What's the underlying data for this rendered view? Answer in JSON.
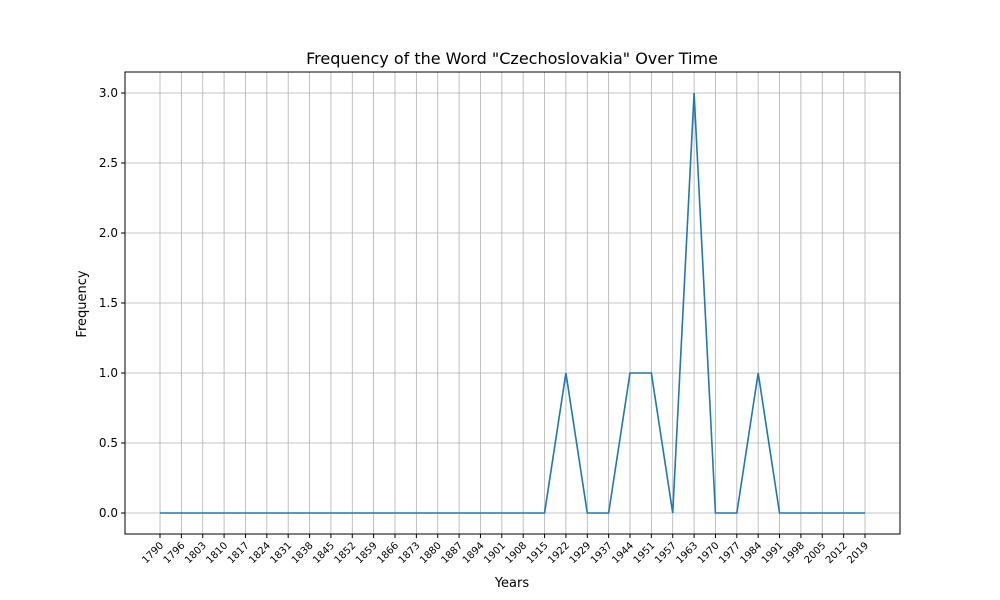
{
  "chart_data": {
    "type": "line",
    "title": "Frequency of the Word \"Czechoslovakia\" Over Time",
    "xlabel": "Years",
    "ylabel": "Frequency",
    "categories": [
      "1790",
      "1796",
      "1803",
      "1810",
      "1817",
      "1824",
      "1831",
      "1838",
      "1845",
      "1852",
      "1859",
      "1866",
      "1873",
      "1880",
      "1887",
      "1894",
      "1901",
      "1908",
      "1915",
      "1922",
      "1929",
      "1937",
      "1944",
      "1951",
      "1957",
      "1963",
      "1970",
      "1977",
      "1984",
      "1991",
      "1998",
      "2005",
      "2012",
      "2019"
    ],
    "series": [
      {
        "values": [
          0,
          0,
          0,
          0,
          0,
          0,
          0,
          0,
          0,
          0,
          0,
          0,
          0,
          0,
          0,
          0,
          0,
          0,
          0,
          1,
          0,
          0,
          1,
          1,
          0,
          3,
          0,
          0,
          1,
          0,
          0,
          0,
          0,
          0
        ],
        "color": "#1f77b4"
      }
    ],
    "yticks": [
      "0.0",
      "0.5",
      "1.0",
      "1.5",
      "2.0",
      "2.5",
      "3.0"
    ],
    "ylim": [
      -0.15,
      3.15
    ],
    "grid": true
  }
}
